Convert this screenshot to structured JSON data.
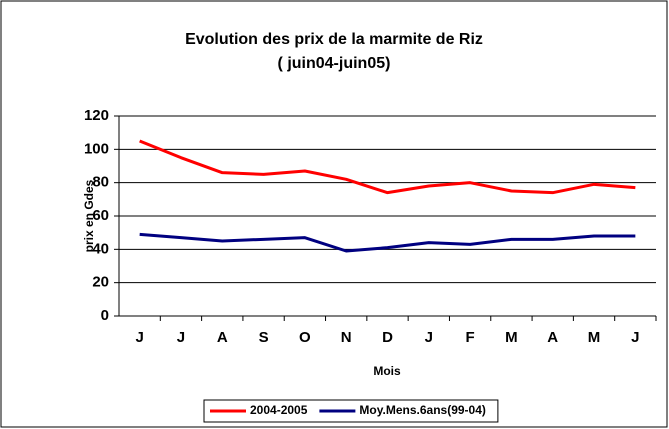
{
  "chart_data": {
    "type": "line",
    "title": "Evolution des prix de la marmite de Riz",
    "subtitle": "( juin04-juin05)",
    "x_label": "Mois",
    "y_label": "prix en Gdes",
    "categories": [
      "J",
      "J",
      "A",
      "S",
      "O",
      "N",
      "D",
      "J",
      "F",
      "M",
      "A",
      "M",
      "J"
    ],
    "series": [
      {
        "name": "2004-2005",
        "color": "#ff0000",
        "values": [
          105,
          95,
          86,
          85,
          87,
          82,
          74,
          78,
          80,
          75,
          74,
          79,
          77
        ]
      },
      {
        "name": "Moy.Mens.6ans(99-04)",
        "color": "#000080",
        "values": [
          49,
          47,
          45,
          46,
          47,
          39,
          41,
          44,
          43,
          46,
          46,
          48,
          48
        ]
      }
    ],
    "ylim": [
      0,
      120
    ],
    "yticks": [
      0,
      20,
      40,
      60,
      80,
      100,
      120
    ],
    "grid": true,
    "legend": "bottom"
  }
}
